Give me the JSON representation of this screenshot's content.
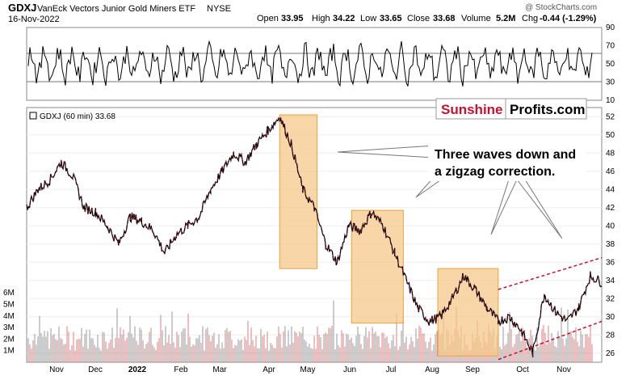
{
  "header": {
    "symbol": "GDXJ",
    "name": "VanEck Vectors Junior Gold Miners ETF",
    "exchange": "NYSE",
    "date": "16-Nov-2022",
    "open_label": "Open",
    "open": "33.95",
    "high_label": "High",
    "high": "34.22",
    "low_label": "Low",
    "low": "33.65",
    "close_label": "Close",
    "close": "33.68",
    "volume_label": "Volume",
    "volume": "5.2M",
    "chg_label": "Chg",
    "chg": "-0.44 (-1.29%)",
    "watermark": "@ StockCharts.com"
  },
  "brand": {
    "part1": "Sunshine",
    "part2": "Profits.com",
    "color1": "#c8102e"
  },
  "annotation": {
    "line1": "Three waves down and",
    "line2": "a zigzag correction."
  },
  "legend": {
    "text": "GDXJ (60 min) 33.68"
  },
  "colors": {
    "price_up": "#000000",
    "price_down": "#c8102e",
    "box_fill": "#f7c88a",
    "box_stroke": "#e8a33a",
    "trendline": "#c8102e",
    "rsi_line": "#000000",
    "volume_bar": "#d98080",
    "volume_grey": "#9a9a9a"
  },
  "chart_data": [
    {
      "type": "line",
      "panel": "rsi",
      "y_ticks": [
        10,
        30,
        50,
        70,
        90
      ],
      "ylim": [
        10,
        90
      ],
      "reference_lines": [
        30,
        70
      ],
      "months": [
        "Nov",
        "Dec",
        "2022",
        "Feb",
        "Mar",
        "Apr",
        "May",
        "Jun",
        "Jul",
        "Aug",
        "Sep",
        "Oct",
        "Nov"
      ]
    },
    {
      "type": "line",
      "panel": "price",
      "title": "GDXJ (60 min) 33.68",
      "ylim": [
        25,
        53
      ],
      "y_ticks": [
        26,
        28,
        30,
        32,
        34,
        36,
        38,
        40,
        42,
        44,
        46,
        48,
        50,
        52
      ],
      "months": [
        "Nov",
        "Dec",
        "2022",
        "Feb",
        "Mar",
        "Apr",
        "May",
        "Jun",
        "Jul",
        "Aug",
        "Sep",
        "Oct",
        "Nov"
      ],
      "x": [
        0,
        0.02,
        0.04,
        0.06,
        0.08,
        0.1,
        0.12,
        0.14,
        0.16,
        0.18,
        0.2,
        0.22,
        0.24,
        0.26,
        0.28,
        0.3,
        0.32,
        0.34,
        0.36,
        0.38,
        0.4,
        0.42,
        0.44,
        0.46,
        0.48,
        0.5,
        0.52,
        0.54,
        0.56,
        0.58,
        0.6,
        0.62,
        0.64,
        0.66,
        0.68,
        0.7,
        0.72,
        0.74,
        0.76,
        0.78,
        0.8,
        0.82,
        0.84,
        0.86,
        0.88,
        0.9,
        0.92,
        0.94,
        0.96,
        0.98,
        1.0
      ],
      "values": [
        42.0,
        44.0,
        45.0,
        47.0,
        45.5,
        42.0,
        41.5,
        40.0,
        38.0,
        41.0,
        40.5,
        39.5,
        37.0,
        39.0,
        40.0,
        41.0,
        44.0,
        46.0,
        48.0,
        47.0,
        49.0,
        50.5,
        52.0,
        49.0,
        44.0,
        42.0,
        38.0,
        36.0,
        40.0,
        39.5,
        41.5,
        40.0,
        37.0,
        34.0,
        31.0,
        29.5,
        30.0,
        32.0,
        34.5,
        33.0,
        31.0,
        29.5,
        30.0,
        28.5,
        26.0,
        32.5,
        30.5,
        29.5,
        31.0,
        34.5,
        33.8
      ],
      "boxes": [
        {
          "x0": 0.44,
          "x1": 0.505,
          "y0": 35.3,
          "y1": 52.2
        },
        {
          "x0": 0.565,
          "x1": 0.655,
          "y0": 29.3,
          "y1": 41.7
        },
        {
          "x0": 0.715,
          "x1": 0.82,
          "y0": 25.7,
          "y1": 35.3
        }
      ],
      "trendlines": [
        {
          "x0": 0.82,
          "y0": 33.0,
          "x1": 1.0,
          "y1": 36.5
        },
        {
          "x0": 0.82,
          "y0": 25.3,
          "x1": 1.0,
          "y1": 29.5
        }
      ]
    },
    {
      "type": "bar",
      "panel": "volume",
      "y_ticks": [
        "1M",
        "2M",
        "3M",
        "4M",
        "5M",
        "6M"
      ],
      "ylim": [
        0,
        6.5
      ]
    }
  ]
}
